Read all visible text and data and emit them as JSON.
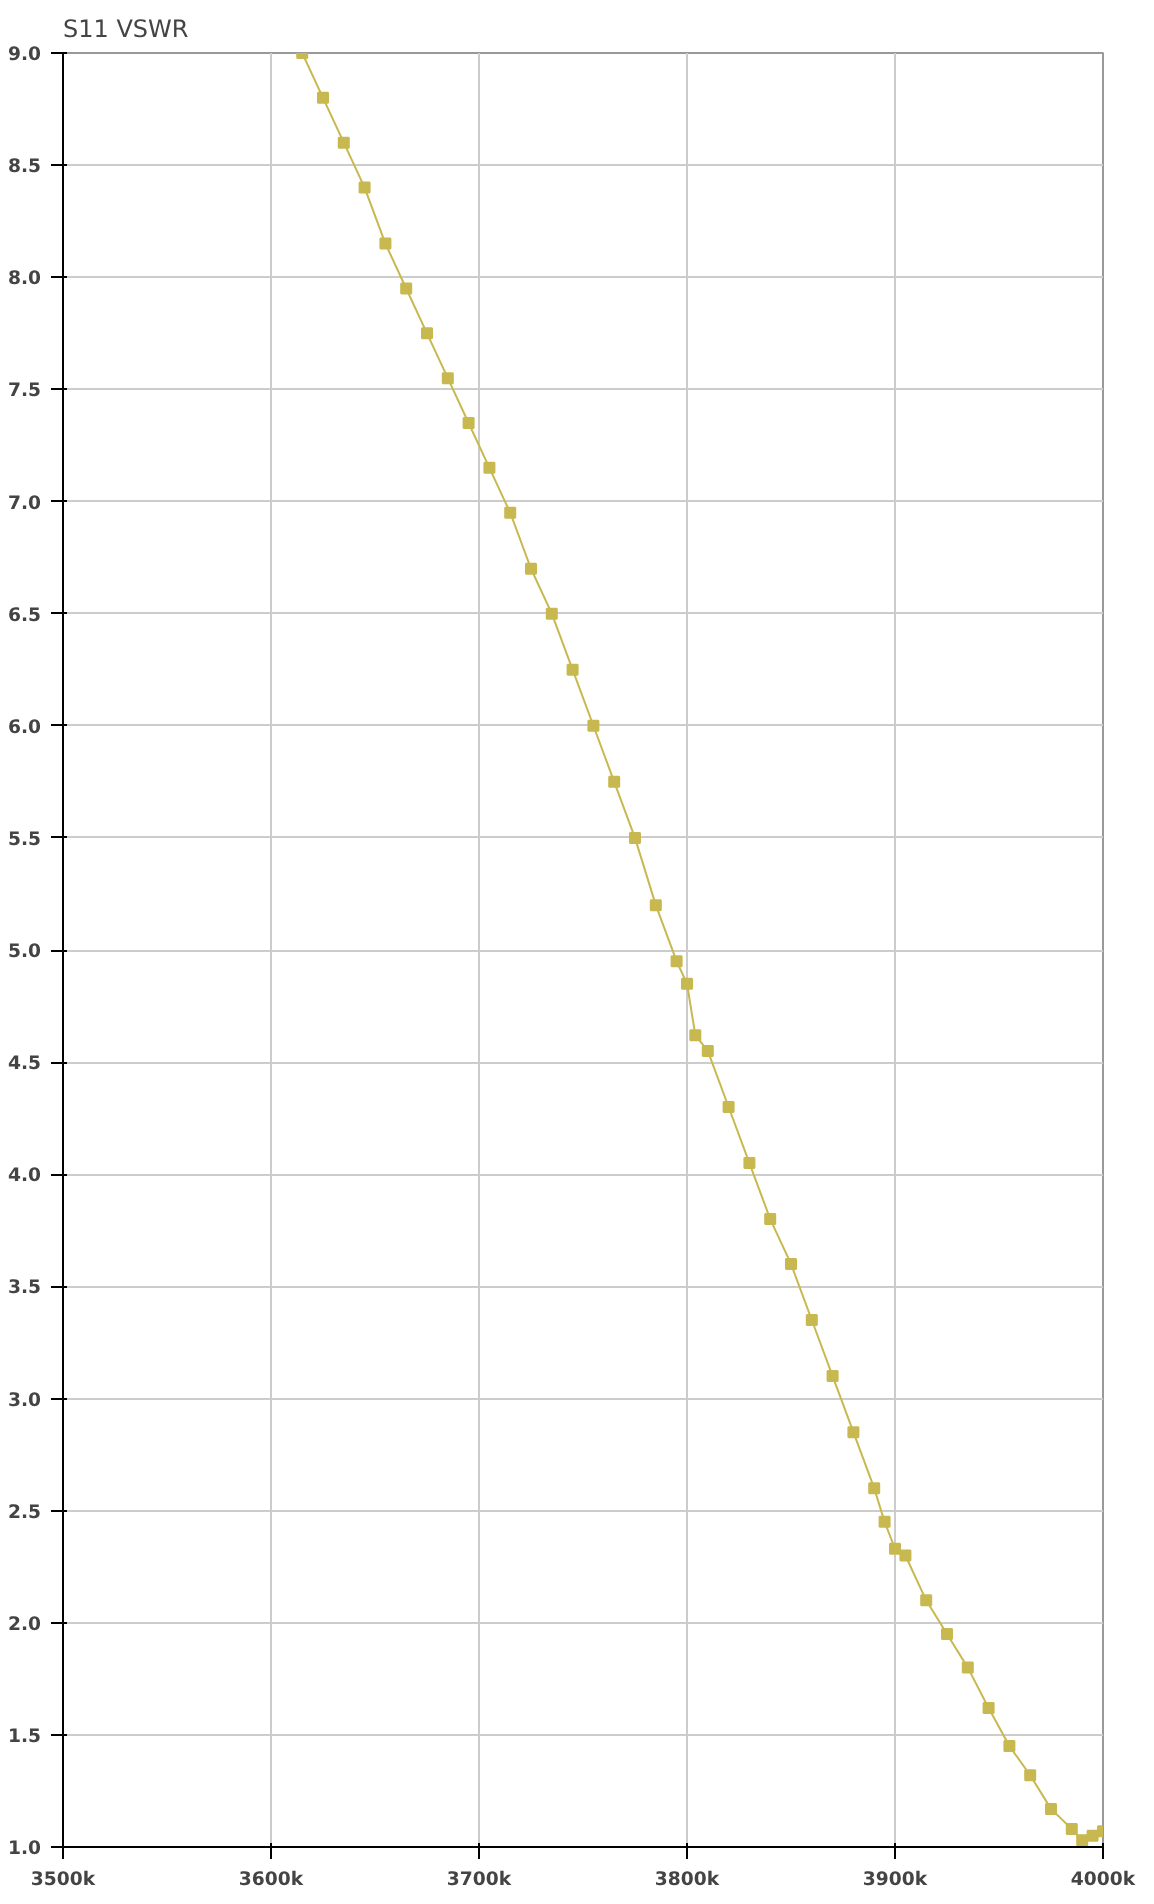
{
  "chart_data": {
    "type": "line",
    "title": "S11 VSWR",
    "x": [
      3615000,
      3625000,
      3635000,
      3645000,
      3655000,
      3665000,
      3675000,
      3685000,
      3695000,
      3705000,
      3715000,
      3725000,
      3735000,
      3745000,
      3755000,
      3765000,
      3775000,
      3785000,
      3795000,
      3800000,
      3804000,
      3810000,
      3820000,
      3830000,
      3840000,
      3850000,
      3860000,
      3870000,
      3880000,
      3890000,
      3895000,
      3900000,
      3905000,
      3915000,
      3925000,
      3935000,
      3945000,
      3955000,
      3965000,
      3975000,
      3985000,
      3990000,
      3995000,
      4000000
    ],
    "series": [
      {
        "color": "#c8b850",
        "values": [
          9.0,
          8.8,
          8.6,
          8.4,
          8.15,
          7.95,
          7.75,
          7.55,
          7.35,
          7.15,
          6.95,
          6.7,
          6.5,
          6.25,
          6.0,
          5.75,
          5.5,
          5.2,
          4.95,
          4.85,
          4.62,
          4.55,
          4.3,
          4.05,
          3.8,
          3.6,
          3.35,
          3.1,
          2.85,
          2.6,
          2.45,
          2.33,
          2.3,
          2.1,
          1.95,
          1.8,
          1.62,
          1.45,
          1.32,
          1.17,
          1.08,
          1.03,
          1.05,
          1.07
        ]
      }
    ],
    "xlim": [
      3500000,
      4000000
    ],
    "xticks": [
      {
        "value": 3500000,
        "label": "3500k"
      },
      {
        "value": 3600000,
        "label": "3600k"
      },
      {
        "value": 3700000,
        "label": "3700k"
      },
      {
        "value": 3800000,
        "label": "3800k"
      },
      {
        "value": 3900000,
        "label": "3900k"
      },
      {
        "value": 4000000,
        "label": "4000k"
      }
    ],
    "ylim": [
      1.0,
      9.0
    ],
    "yticks": [
      {
        "value": 1.0,
        "label": "1.0"
      },
      {
        "value": 1.5,
        "label": "1.5"
      },
      {
        "value": 2.0,
        "label": "2.0"
      },
      {
        "value": 2.5,
        "label": "2.5"
      },
      {
        "value": 3.0,
        "label": "3.0"
      },
      {
        "value": 3.5,
        "label": "3.5"
      },
      {
        "value": 4.0,
        "label": "4.0"
      },
      {
        "value": 4.5,
        "label": "4.5"
      },
      {
        "value": 5.0,
        "label": "5.0"
      },
      {
        "value": 5.5,
        "label": "5.5"
      },
      {
        "value": 6.0,
        "label": "6.0"
      },
      {
        "value": 6.5,
        "label": "6.5"
      },
      {
        "value": 7.0,
        "label": "7.0"
      },
      {
        "value": 7.5,
        "label": "7.5"
      },
      {
        "value": 8.0,
        "label": "8.0"
      },
      {
        "value": 8.5,
        "label": "8.5"
      },
      {
        "value": 9.0,
        "label": "9.0"
      }
    ],
    "grid": true,
    "marker": "square",
    "line_style": "solid"
  }
}
